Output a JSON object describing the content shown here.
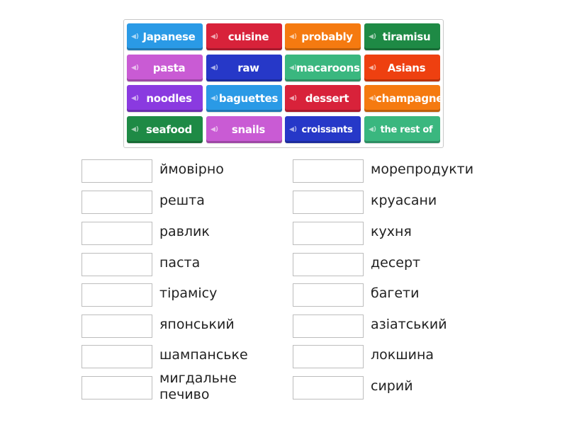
{
  "tiles": [
    {
      "label": "Japanese",
      "color": "#2a9ae6"
    },
    {
      "label": "cuisine",
      "color": "#d8223a"
    },
    {
      "label": "probably",
      "color": "#f57a10"
    },
    {
      "label": "tiramisu",
      "color": "#1e8a45"
    },
    {
      "label": "pasta",
      "color": "#c95bd4"
    },
    {
      "label": "raw",
      "color": "#2638c8"
    },
    {
      "label": "macaroons",
      "color": "#3ab77f"
    },
    {
      "label": "Asians",
      "color": "#ee4010"
    },
    {
      "label": "noodles",
      "color": "#8a3ae0"
    },
    {
      "label": "baguettes",
      "color": "#2a9ae6"
    },
    {
      "label": "dessert",
      "color": "#d8223a"
    },
    {
      "label": "champagne",
      "color": "#f57a10"
    },
    {
      "label": "seafood",
      "color": "#1e8a45"
    },
    {
      "label": "snails",
      "color": "#c95bd4"
    },
    {
      "label": "croissants",
      "color": "#2638c8"
    },
    {
      "label": "the rest of",
      "color": "#3ab77f"
    }
  ],
  "tile_icon": "speaker-icon",
  "left_targets": [
    "ймовірно",
    "решта",
    "равлик",
    "паста",
    "тірамісу",
    "японський",
    "шампанське",
    "мигдальне печиво"
  ],
  "right_targets": [
    "морепродукти",
    "круасани",
    "кухня",
    "десерт",
    "багети",
    "азіатський",
    "локшина",
    "сирий"
  ]
}
